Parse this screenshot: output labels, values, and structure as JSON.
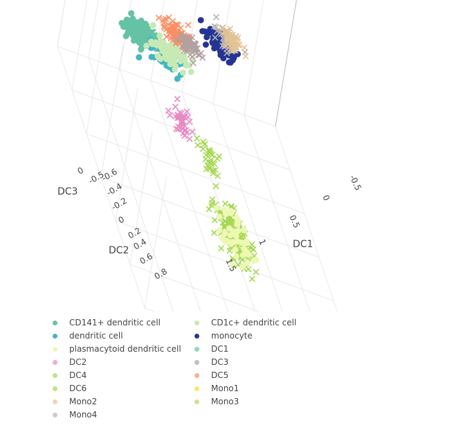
{
  "chart_data": {
    "type": "scatter",
    "title": "",
    "axes": {
      "x": {
        "label": "DC1",
        "ticks": [
          "-0.5",
          "0",
          "0.5",
          "1",
          "1.5"
        ]
      },
      "y": {
        "label": "DC2",
        "ticks": [
          "-0.6",
          "-0.4",
          "-0.2",
          "0",
          "0.2",
          "0.4",
          "0.6",
          "0.8"
        ]
      },
      "z": {
        "label": "DC3",
        "ticks": [
          "0",
          "-0.5"
        ]
      }
    },
    "legend_position": "bottom",
    "series": [
      {
        "name": "CD141+ dendritic cell",
        "marker": "circle",
        "color": "#66c2a5"
      },
      {
        "name": "CD1c+ dendritic cell",
        "marker": "circle",
        "color": "#c7e9b4"
      },
      {
        "name": "dendritic cell",
        "marker": "circle",
        "color": "#41b6c4"
      },
      {
        "name": "monocyte",
        "marker": "circle",
        "color": "#253494"
      },
      {
        "name": "plasmacytoid dendritic cell",
        "marker": "circle",
        "color": "#edf8b1"
      },
      {
        "name": "DC1",
        "marker": "x",
        "color": "#66c2a5"
      },
      {
        "name": "DC2",
        "marker": "x",
        "color": "#e78ac3"
      },
      {
        "name": "DC3",
        "marker": "x",
        "color": "#b3a0a0"
      },
      {
        "name": "DC4",
        "marker": "x",
        "color": "#a6d854"
      },
      {
        "name": "DC5",
        "marker": "x",
        "color": "#fc8d62"
      },
      {
        "name": "DC6",
        "marker": "x",
        "color": "#a6d854"
      },
      {
        "name": "Mono1",
        "marker": "x",
        "color": "#ffd92f"
      },
      {
        "name": "Mono2",
        "marker": "x",
        "color": "#e5c494"
      },
      {
        "name": "Mono3",
        "marker": "x",
        "color": "#b3d66b"
      },
      {
        "name": "Mono4",
        "marker": "x",
        "color": "#b3b3b3"
      }
    ],
    "clusters": [
      {
        "series": "CD141+ dendritic cell",
        "x": -0.1,
        "y": -0.55,
        "z": 0.3,
        "n": 90,
        "spread": [
          0.08,
          0.05
        ]
      },
      {
        "series": "DC1",
        "x": -0.05,
        "y": -0.55,
        "z": 0.32,
        "n": 70,
        "spread": [
          0.07,
          0.04
        ]
      },
      {
        "series": "dendritic cell",
        "x": 0.1,
        "y": -0.45,
        "z": 0.25,
        "n": 35,
        "spread": [
          0.08,
          0.05
        ]
      },
      {
        "series": "CD1c+ dendritic cell",
        "x": 0.2,
        "y": -0.55,
        "z": 0.2,
        "n": 70,
        "spread": [
          0.08,
          0.05
        ]
      },
      {
        "series": "DC5",
        "x": 0.3,
        "y": -0.65,
        "z": 0.3,
        "n": 80,
        "spread": [
          0.07,
          0.04
        ]
      },
      {
        "series": "DC3",
        "x": 0.4,
        "y": -0.6,
        "z": 0.3,
        "n": 60,
        "spread": [
          0.06,
          0.04
        ]
      },
      {
        "series": "monocyte",
        "x": 0.75,
        "y": -0.7,
        "z": 0.3,
        "n": 90,
        "spread": [
          0.06,
          0.05
        ]
      },
      {
        "series": "Mono4",
        "x": 0.8,
        "y": -0.7,
        "z": 0.35,
        "n": 50,
        "spread": [
          0.05,
          0.04
        ]
      },
      {
        "series": "Mono2",
        "x": 0.85,
        "y": -0.72,
        "z": 0.35,
        "n": 40,
        "spread": [
          0.05,
          0.04
        ]
      },
      {
        "series": "DC2",
        "x": 0.1,
        "y": -0.1,
        "z": 0.15,
        "n": 40,
        "spread": [
          0.05,
          0.08
        ]
      },
      {
        "series": "DC6",
        "x": 0.3,
        "y": 0.1,
        "z": 0.1,
        "n": 30,
        "spread": [
          0.05,
          0.08
        ]
      },
      {
        "series": "DC4",
        "x": 0.3,
        "y": 0.6,
        "z": 0.05,
        "n": 130,
        "spread": [
          0.07,
          0.12
        ]
      },
      {
        "series": "plasmacytoid dendritic cell",
        "x": 0.3,
        "y": 0.6,
        "z": 0.05,
        "n": 40,
        "spread": [
          0.07,
          0.12
        ]
      }
    ]
  }
}
